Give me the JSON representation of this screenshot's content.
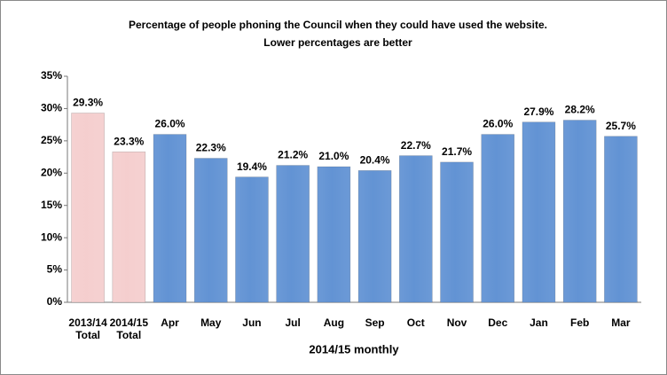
{
  "chart_data": {
    "type": "bar",
    "title": "Percentage of people phoning the Council when they could have used the website.",
    "subtitle": "Lower percentages are better",
    "x_label": "2014/15 monthly",
    "categories": [
      "2013/14 Total",
      "2014/15 Total",
      "Apr",
      "May",
      "Jun",
      "Jul",
      "Aug",
      "Sep",
      "Oct",
      "Nov",
      "Dec",
      "Jan",
      "Feb",
      "Mar"
    ],
    "values": [
      29.3,
      23.3,
      26.0,
      22.3,
      19.4,
      21.2,
      21.0,
      20.4,
      22.7,
      21.7,
      26.0,
      27.9,
      28.2,
      25.7
    ],
    "value_labels": [
      "29.3%",
      "23.3%",
      "26.0%",
      "22.3%",
      "19.4%",
      "21.2%",
      "21.0%",
      "20.4%",
      "22.7%",
      "21.7%",
      "26.0%",
      "27.9%",
      "28.2%",
      "25.7%"
    ],
    "colors": [
      "#f2c2c2",
      "#f2c2c2",
      "#3b78c9",
      "#3b78c9",
      "#3b78c9",
      "#3b78c9",
      "#3b78c9",
      "#3b78c9",
      "#3b78c9",
      "#3b78c9",
      "#3b78c9",
      "#3b78c9",
      "#3b78c9",
      "#3b78c9"
    ],
    "ylim": [
      0,
      35
    ],
    "yticks": [
      {
        "value": 0,
        "label": "0%"
      },
      {
        "value": 5,
        "label": "5%"
      },
      {
        "value": 10,
        "label": "10%"
      },
      {
        "value": 15,
        "label": "15%"
      },
      {
        "value": 20,
        "label": "20%"
      },
      {
        "value": 25,
        "label": "25%"
      },
      {
        "value": 30,
        "label": "30%"
      },
      {
        "value": 35,
        "label": "35%"
      }
    ],
    "grid": false
  }
}
